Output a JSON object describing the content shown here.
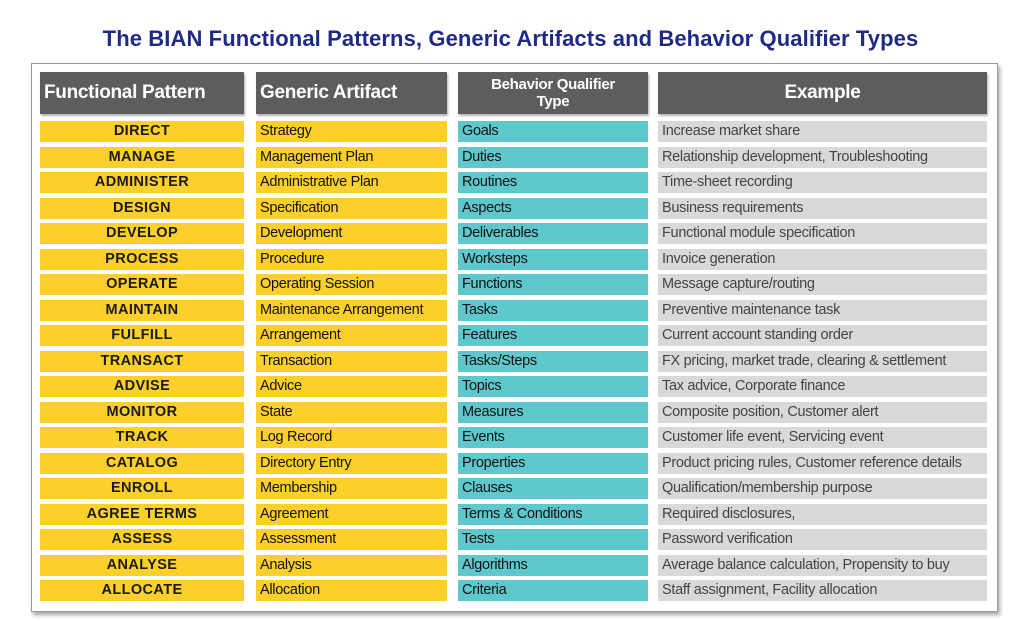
{
  "title": "The BIAN Functional Patterns, Generic Artifacts and Behavior Qualifier Types",
  "headers": {
    "functional_pattern": "Functional Pattern",
    "generic_artifact": "Generic Artifact",
    "behavior_qualifier_line1": "Behavior Qualifier",
    "behavior_qualifier_line2": "Type",
    "example": "Example"
  },
  "colors": {
    "title": "#1f2a84",
    "header_bg": "#5d5d5d",
    "pattern_bg": "#fcd02b",
    "artifact_bg": "#fcd02b",
    "qualifier_bg": "#5ec8cc",
    "example_bg": "#d9d9d9"
  },
  "rows": [
    {
      "pattern": "DIRECT",
      "artifact": "Strategy",
      "qualifier": "Goals",
      "example": "Increase market share"
    },
    {
      "pattern": "MANAGE",
      "artifact": "Management Plan",
      "qualifier": "Duties",
      "example": "Relationship development, Troubleshooting"
    },
    {
      "pattern": "ADMINISTER",
      "artifact": "Administrative Plan",
      "qualifier": "Routines",
      "example": "Time-sheet recording"
    },
    {
      "pattern": "DESIGN",
      "artifact": "Specification",
      "qualifier": "Aspects",
      "example": "Business requirements"
    },
    {
      "pattern": "DEVELOP",
      "artifact": "Development",
      "qualifier": "Deliverables",
      "example": "Functional module specification"
    },
    {
      "pattern": "PROCESS",
      "artifact": "Procedure",
      "qualifier": "Worksteps",
      "example": "Invoice generation"
    },
    {
      "pattern": "OPERATE",
      "artifact": "Operating Session",
      "qualifier": "Functions",
      "example": "Message capture/routing"
    },
    {
      "pattern": "MAINTAIN",
      "artifact": "Maintenance Arrangement",
      "qualifier": "Tasks",
      "example": "Preventive maintenance task"
    },
    {
      "pattern": "FULFILL",
      "artifact": "Arrangement",
      "qualifier": "Features",
      "example": "Current account standing order"
    },
    {
      "pattern": "TRANSACT",
      "artifact": "Transaction",
      "qualifier": "Tasks/Steps",
      "example": "FX pricing, market trade, clearing & settlement"
    },
    {
      "pattern": "ADVISE",
      "artifact": "Advice",
      "qualifier": "Topics",
      "example": "Tax advice, Corporate finance"
    },
    {
      "pattern": "MONITOR",
      "artifact": "State",
      "qualifier": "Measures",
      "example": "Composite position, Customer alert"
    },
    {
      "pattern": "TRACK",
      "artifact": "Log Record",
      "qualifier": "Events",
      "example": "Customer life event, Servicing event"
    },
    {
      "pattern": "CATALOG",
      "artifact": "Directory Entry",
      "qualifier": "Properties",
      "example": "Product pricing rules, Customer reference details"
    },
    {
      "pattern": "ENROLL",
      "artifact": "Membership",
      "qualifier": "Clauses",
      "example": "Qualification/membership purpose"
    },
    {
      "pattern": "AGREE TERMS",
      "artifact": "Agreement",
      "qualifier": "Terms & Conditions",
      "example": "Required disclosures,"
    },
    {
      "pattern": "ASSESS",
      "artifact": "Assessment",
      "qualifier": "Tests",
      "example": "Password verification"
    },
    {
      "pattern": "ANALYSE",
      "artifact": "Analysis",
      "qualifier": "Algorithms",
      "example": "Average balance calculation, Propensity to buy"
    },
    {
      "pattern": "ALLOCATE",
      "artifact": "Allocation",
      "qualifier": "Criteria",
      "example": "Staff assignment, Facility allocation"
    }
  ]
}
